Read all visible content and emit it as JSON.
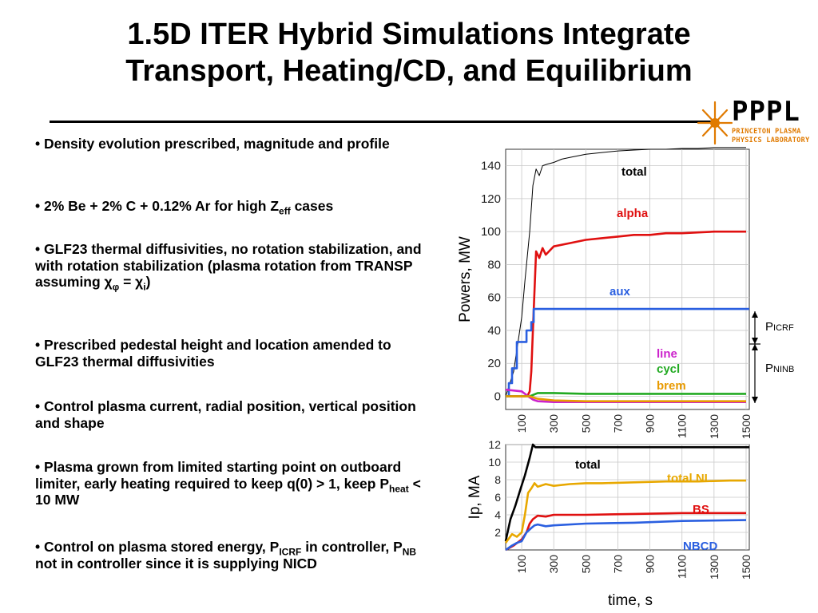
{
  "title": {
    "line1": "1.5D ITER Hybrid Simulations Integrate",
    "line2": "Transport, Heating/CD, and Equilibrium"
  },
  "logo": {
    "word": "PPPL",
    "sub1": "PRINCETON PLASMA",
    "sub2": "PHYSICS LABORATORY"
  },
  "bullets": [
    "Density evolution prescribed, magnitude and profile",
    "2% Be + 2% C + 0.12% Ar for high Z<sub>eff</sub> cases",
    "GLF23 thermal diffusivities, no rotation stabilization, and with rotation stabilization (plasma rotation from TRANSP assuming χ<sub>φ</sub> = χ<sub>i</sub>)",
    "Prescribed pedestal height and location amended to GLF23 thermal diffusivities",
    "Control plasma current, radial position, vertical position and shape",
    "Plasma grown from limited starting point on outboard limiter, early heating required to keep q(0) > 1, keep P<sub>heat</sub> < 10 MW",
    "Control on plasma stored energy, P<sub>ICRF</sub> in controller, P<sub>NB</sub> not in controller since it is supplying NICD"
  ],
  "chart_data": [
    {
      "type": "line",
      "ylabel": "Powers, MW",
      "xlim": [
        0,
        1520
      ],
      "ylim": [
        -8,
        150
      ],
      "yticks": [
        0,
        20,
        40,
        60,
        80,
        100,
        120,
        140
      ],
      "xticks": [
        100,
        300,
        500,
        700,
        900,
        1100,
        1300,
        1500
      ],
      "grid": true,
      "colors": {
        "total": "#000000",
        "alpha": "#e01010",
        "aux": "#2a5fe0",
        "line": "#cc22cc",
        "cycl": "#22aa22",
        "brem": "#e89a00"
      },
      "series": [
        {
          "name": "total",
          "x": [
            0,
            50,
            100,
            120,
            150,
            170,
            190,
            210,
            230,
            260,
            300,
            350,
            400,
            500,
            600,
            700,
            800,
            900,
            1000,
            1100,
            1200,
            1300,
            1400,
            1500
          ],
          "y": [
            0,
            15,
            48,
            70,
            100,
            128,
            138,
            134,
            140,
            141,
            142,
            144,
            145,
            147,
            148,
            149,
            149.5,
            150,
            150,
            150.5,
            150.5,
            151,
            151,
            151
          ]
        },
        {
          "name": "alpha",
          "x": [
            0,
            120,
            140,
            150,
            160,
            170,
            190,
            210,
            230,
            250,
            300,
            400,
            500,
            600,
            700,
            800,
            900,
            1000,
            1100,
            1200,
            1300,
            1400,
            1500
          ],
          "y": [
            0,
            0,
            1,
            3,
            15,
            40,
            88,
            84,
            90,
            86,
            91,
            93,
            95,
            96,
            97,
            98,
            98,
            99,
            99,
            99.5,
            100,
            100,
            100
          ]
        },
        {
          "name": "aux",
          "x": [
            0,
            20,
            20,
            40,
            40,
            70,
            70,
            130,
            130,
            160,
            160,
            175,
            175,
            1520
          ],
          "y": [
            0,
            0,
            8,
            8,
            17,
            17,
            33,
            33,
            40,
            40,
            45,
            45,
            53,
            53
          ]
        },
        {
          "name": "line",
          "x": [
            0,
            100,
            140,
            170,
            200,
            300,
            500,
            800,
            1100,
            1500
          ],
          "y": [
            4,
            3,
            0,
            -2,
            -3,
            -3.5,
            -3.5,
            -3.5,
            -3.5,
            -3.5
          ]
        },
        {
          "name": "cycl",
          "x": [
            0,
            100,
            150,
            200,
            300,
            500,
            800,
            1100,
            1500
          ],
          "y": [
            0,
            0,
            0,
            2,
            2,
            1.5,
            1.5,
            1.5,
            1.5
          ]
        },
        {
          "name": "brem",
          "x": [
            0,
            100,
            150,
            200,
            300,
            500,
            800,
            1100,
            1500
          ],
          "y": [
            0,
            0,
            0,
            -1.5,
            -2.5,
            -3,
            -3,
            -3,
            -3
          ]
        }
      ],
      "annotations": [
        "P",
        "ICRF",
        "P",
        "NINB"
      ]
    },
    {
      "type": "line",
      "ylabel": "Ip, MA",
      "xlabel": "time, s",
      "xlim": [
        0,
        1520
      ],
      "ylim": [
        0,
        12
      ],
      "yticks": [
        2,
        4,
        6,
        8,
        10,
        12
      ],
      "xticks": [
        100,
        300,
        500,
        700,
        900,
        1100,
        1300,
        1500
      ],
      "grid": true,
      "colors": {
        "total": "#000000",
        "total NI": "#e8a800",
        "BS": "#e01010",
        "NBCD": "#2a5fe0"
      },
      "series": [
        {
          "name": "total",
          "x": [
            0,
            30,
            60,
            90,
            120,
            150,
            170,
            185,
            1520
          ],
          "y": [
            1,
            3.5,
            5,
            6.8,
            8.5,
            10.5,
            12,
            11.7,
            11.7
          ]
        },
        {
          "name": "total NI",
          "x": [
            0,
            40,
            70,
            100,
            120,
            140,
            160,
            180,
            200,
            250,
            300,
            400,
            500,
            600,
            800,
            1000,
            1200,
            1400,
            1500
          ],
          "y": [
            0.8,
            1.8,
            1.5,
            2,
            4,
            6.5,
            7,
            7.6,
            7.2,
            7.5,
            7.3,
            7.5,
            7.6,
            7.6,
            7.7,
            7.8,
            7.8,
            7.9,
            7.9
          ]
        },
        {
          "name": "BS",
          "x": [
            0,
            50,
            100,
            130,
            150,
            170,
            200,
            250,
            300,
            500,
            800,
            1100,
            1500
          ],
          "y": [
            0,
            0.5,
            1.2,
            2,
            3,
            3.5,
            3.9,
            3.8,
            4,
            4,
            4.1,
            4.2,
            4.2
          ]
        },
        {
          "name": "NBCD",
          "x": [
            0,
            40,
            70,
            100,
            130,
            160,
            180,
            200,
            250,
            300,
            500,
            800,
            1100,
            1500
          ],
          "y": [
            0,
            0.5,
            0.8,
            1,
            2,
            2.5,
            2.8,
            2.9,
            2.7,
            2.8,
            3,
            3.1,
            3.3,
            3.4
          ]
        }
      ]
    }
  ]
}
